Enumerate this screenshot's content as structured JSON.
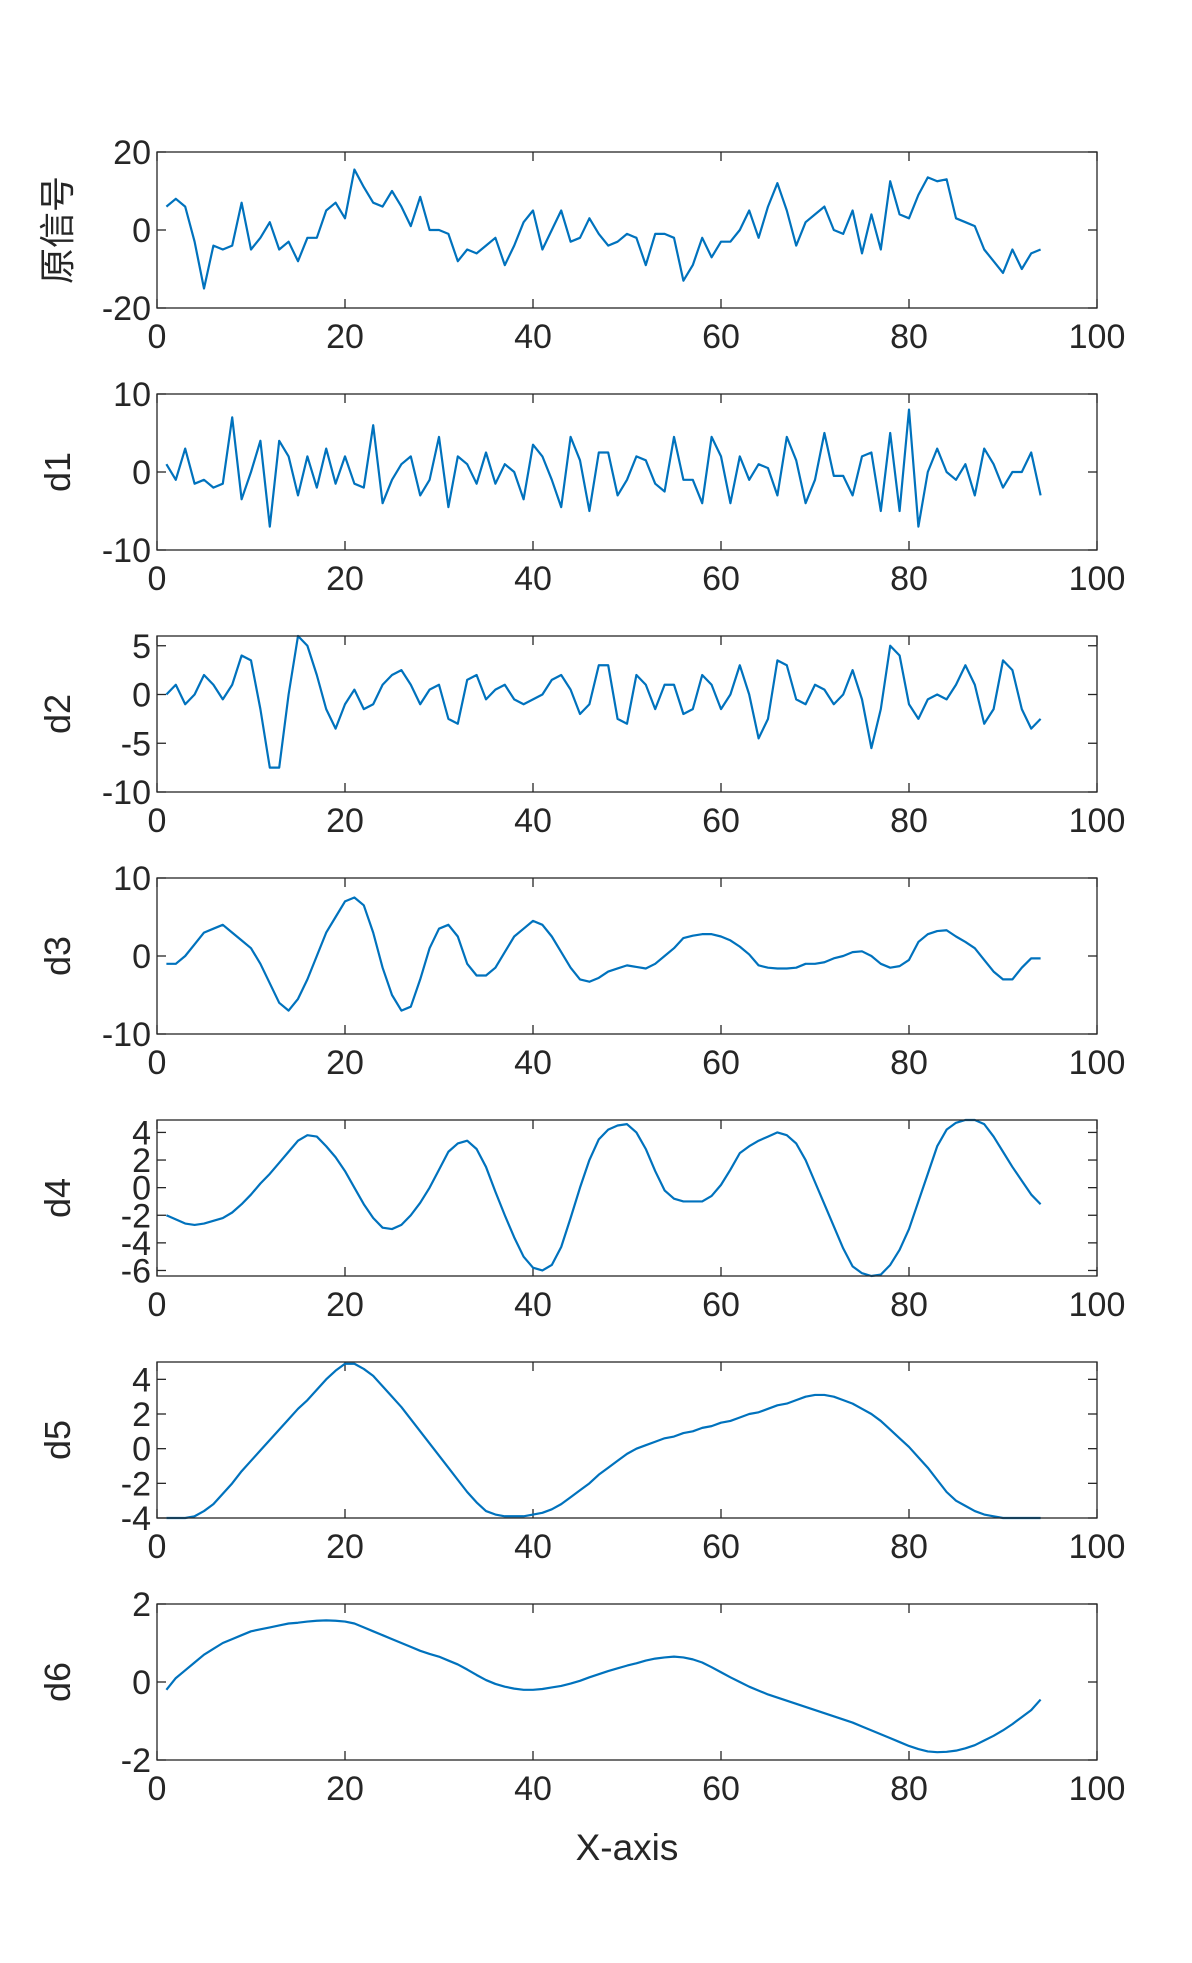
{
  "chart_data": [
    {
      "type": "line",
      "ylabel": "原信号",
      "color": "#0072bd",
      "x": [
        1,
        2,
        3,
        4,
        5,
        6,
        7,
        8,
        9,
        10,
        11,
        12,
        13,
        14,
        15,
        16,
        17,
        18,
        19,
        20,
        21,
        22,
        23,
        24,
        25,
        26,
        27,
        28,
        29,
        30,
        31,
        32,
        33,
        34,
        35,
        36,
        37,
        38,
        39,
        40,
        41,
        42,
        43,
        44,
        45,
        46,
        47,
        48,
        49,
        50,
        51,
        52,
        53,
        54,
        55,
        56,
        57,
        58,
        59,
        60,
        61,
        62,
        63,
        64,
        65,
        66,
        67,
        68,
        69,
        70,
        71,
        72,
        73,
        74,
        75,
        76,
        77,
        78,
        79,
        80,
        81,
        82,
        83,
        84,
        85,
        86,
        87,
        88,
        89,
        90,
        91,
        92,
        93,
        94
      ],
      "values": [
        6,
        8,
        6,
        -3,
        -15,
        -4,
        -5,
        -4,
        7,
        -5,
        -2,
        2,
        -5,
        -3,
        -8,
        -2,
        -2,
        5,
        7,
        3,
        15.5,
        11,
        7,
        6,
        10,
        6,
        1,
        8.5,
        0,
        0,
        -1,
        -8,
        -5,
        -6,
        -4,
        -2,
        -9,
        -4,
        2,
        5,
        -5,
        0,
        5,
        -3,
        -2,
        3,
        -1,
        -4,
        -3,
        -1,
        -2,
        -9,
        -1,
        -1,
        -2,
        -13,
        -9,
        -2,
        -7,
        -3,
        -3,
        0,
        5,
        -2,
        6,
        12,
        5,
        -4,
        2,
        4,
        6,
        0,
        -1,
        5,
        -6,
        4,
        -5,
        12.5,
        4,
        3,
        9,
        13.5,
        12.5,
        13,
        3,
        2,
        1,
        -5,
        -8,
        -11,
        -5,
        -10,
        -6,
        -5
      ],
      "xlim": [
        0,
        100
      ],
      "xticks": [
        0,
        20,
        40,
        60,
        80,
        100
      ],
      "ylim": [
        -20,
        20
      ],
      "yticks": [
        -20,
        0,
        20
      ]
    },
    {
      "type": "line",
      "ylabel": "d1",
      "color": "#0072bd",
      "x": [
        1,
        2,
        3,
        4,
        5,
        6,
        7,
        8,
        9,
        10,
        11,
        12,
        13,
        14,
        15,
        16,
        17,
        18,
        19,
        20,
        21,
        22,
        23,
        24,
        25,
        26,
        27,
        28,
        29,
        30,
        31,
        32,
        33,
        34,
        35,
        36,
        37,
        38,
        39,
        40,
        41,
        42,
        43,
        44,
        45,
        46,
        47,
        48,
        49,
        50,
        51,
        52,
        53,
        54,
        55,
        56,
        57,
        58,
        59,
        60,
        61,
        62,
        63,
        64,
        65,
        66,
        67,
        68,
        69,
        70,
        71,
        72,
        73,
        74,
        75,
        76,
        77,
        78,
        79,
        80,
        81,
        82,
        83,
        84,
        85,
        86,
        87,
        88,
        89,
        90,
        91,
        92,
        93,
        94
      ],
      "values": [
        1,
        -1,
        3,
        -1.5,
        -1,
        -2,
        -1.5,
        7,
        -3.5,
        0,
        4,
        -7,
        4,
        2,
        -3,
        2,
        -2,
        3,
        -1.5,
        2,
        -1.5,
        -2,
        6,
        -4,
        -1,
        1,
        2,
        -3,
        -1,
        4.5,
        -4.5,
        2,
        1,
        -1.5,
        2.5,
        -1.5,
        1,
        0,
        -3.5,
        3.5,
        2,
        -1,
        -4.5,
        4.5,
        1.5,
        -5,
        2.5,
        2.5,
        -3,
        -1,
        2,
        1.5,
        -1.5,
        -2.5,
        4.5,
        -1,
        -1,
        -4,
        4.5,
        2,
        -4,
        2,
        -1,
        1,
        0.5,
        -3,
        4.5,
        1.5,
        -4,
        -1,
        5,
        -0.5,
        -0.5,
        -3,
        2,
        2.5,
        -5,
        5,
        -5,
        8,
        -7,
        0,
        3,
        0,
        -1,
        1,
        -3,
        3,
        1,
        -2,
        0,
        0,
        2.5,
        -3
      ],
      "xlim": [
        0,
        100
      ],
      "xticks": [
        0,
        20,
        40,
        60,
        80,
        100
      ],
      "ylim": [
        -10,
        10
      ],
      "yticks": [
        -10,
        0,
        10
      ]
    },
    {
      "type": "line",
      "ylabel": "d2",
      "color": "#0072bd",
      "x": [
        1,
        2,
        3,
        4,
        5,
        6,
        7,
        8,
        9,
        10,
        11,
        12,
        13,
        14,
        15,
        16,
        17,
        18,
        19,
        20,
        21,
        22,
        23,
        24,
        25,
        26,
        27,
        28,
        29,
        30,
        31,
        32,
        33,
        34,
        35,
        36,
        37,
        38,
        39,
        40,
        41,
        42,
        43,
        44,
        45,
        46,
        47,
        48,
        49,
        50,
        51,
        52,
        53,
        54,
        55,
        56,
        57,
        58,
        59,
        60,
        61,
        62,
        63,
        64,
        65,
        66,
        67,
        68,
        69,
        70,
        71,
        72,
        73,
        74,
        75,
        76,
        77,
        78,
        79,
        80,
        81,
        82,
        83,
        84,
        85,
        86,
        87,
        88,
        89,
        90,
        91,
        92,
        93,
        94
      ],
      "values": [
        0,
        1,
        -1,
        0,
        2,
        1,
        -0.5,
        1,
        4,
        3.5,
        -1.5,
        -7.5,
        -7.5,
        0,
        6,
        5,
        2,
        -1.5,
        -3.5,
        -1,
        0.5,
        -1.5,
        -1,
        1,
        2,
        2.5,
        1,
        -1,
        0.5,
        1,
        -2.5,
        -3,
        1.5,
        2,
        -0.5,
        0.5,
        1,
        -0.5,
        -1,
        -0.5,
        0,
        1.5,
        2,
        0.5,
        -2,
        -1,
        3,
        3,
        -2.5,
        -3,
        2,
        1,
        -1.5,
        1,
        1,
        -2,
        -1.5,
        2,
        1,
        -1.5,
        0,
        3,
        0,
        -4.5,
        -2.5,
        3.5,
        3,
        -0.5,
        -1,
        1,
        0.5,
        -1,
        0,
        2.5,
        -0.5,
        -5.5,
        -1.5,
        5,
        4,
        -1,
        -2.5,
        -0.5,
        0,
        -0.5,
        1,
        3,
        1,
        -3,
        -1.5,
        3.5,
        2.5,
        -1.5,
        -3.5,
        -2.5
      ],
      "xlim": [
        0,
        100
      ],
      "xticks": [
        0,
        20,
        40,
        60,
        80,
        100
      ],
      "ylim": [
        -10,
        6
      ],
      "yticks": [
        -10,
        -5,
        0,
        5
      ]
    },
    {
      "type": "line",
      "ylabel": "d3",
      "color": "#0072bd",
      "x": [
        1,
        2,
        3,
        4,
        5,
        6,
        7,
        8,
        9,
        10,
        11,
        12,
        13,
        14,
        15,
        16,
        17,
        18,
        19,
        20,
        21,
        22,
        23,
        24,
        25,
        26,
        27,
        28,
        29,
        30,
        31,
        32,
        33,
        34,
        35,
        36,
        37,
        38,
        39,
        40,
        41,
        42,
        43,
        44,
        45,
        46,
        47,
        48,
        49,
        50,
        51,
        52,
        53,
        54,
        55,
        56,
        57,
        58,
        59,
        60,
        61,
        62,
        63,
        64,
        65,
        66,
        67,
        68,
        69,
        70,
        71,
        72,
        73,
        74,
        75,
        76,
        77,
        78,
        79,
        80,
        81,
        82,
        83,
        84,
        85,
        86,
        87,
        88,
        89,
        90,
        91,
        92,
        93,
        94
      ],
      "values": [
        -1,
        -1,
        0,
        1.5,
        3,
        3.5,
        4,
        3,
        2,
        1,
        -1,
        -3.5,
        -6,
        -7,
        -5.5,
        -3,
        0,
        3,
        5,
        7,
        7.5,
        6.5,
        3,
        -1.5,
        -5,
        -7,
        -6.5,
        -3,
        1,
        3.5,
        4,
        2.5,
        -1,
        -2.5,
        -2.5,
        -1.5,
        0.5,
        2.5,
        3.5,
        4.5,
        4,
        2.5,
        0.5,
        -1.5,
        -3,
        -3.3,
        -2.8,
        -2,
        -1.6,
        -1.2,
        -1.4,
        -1.6,
        -1,
        0,
        1,
        2.3,
        2.6,
        2.8,
        2.8,
        2.5,
        2,
        1.2,
        0.2,
        -1.2,
        -1.5,
        -1.6,
        -1.6,
        -1.5,
        -1,
        -1,
        -0.8,
        -0.3,
        0,
        0.5,
        0.6,
        0,
        -1,
        -1.5,
        -1.3,
        -0.5,
        1.8,
        2.8,
        3.2,
        3.3,
        2.5,
        1.8,
        1,
        -0.5,
        -2,
        -3,
        -3,
        -1.5,
        -0.3,
        -0.3
      ],
      "xlim": [
        0,
        100
      ],
      "xticks": [
        0,
        20,
        40,
        60,
        80,
        100
      ],
      "ylim": [
        -10,
        10
      ],
      "yticks": [
        -10,
        0,
        10
      ]
    },
    {
      "type": "line",
      "ylabel": "d4",
      "color": "#0072bd",
      "x": [
        1,
        2,
        3,
        4,
        5,
        6,
        7,
        8,
        9,
        10,
        11,
        12,
        13,
        14,
        15,
        16,
        17,
        18,
        19,
        20,
        21,
        22,
        23,
        24,
        25,
        26,
        27,
        28,
        29,
        30,
        31,
        32,
        33,
        34,
        35,
        36,
        37,
        38,
        39,
        40,
        41,
        42,
        43,
        44,
        45,
        46,
        47,
        48,
        49,
        50,
        51,
        52,
        53,
        54,
        55,
        56,
        57,
        58,
        59,
        60,
        61,
        62,
        63,
        64,
        65,
        66,
        67,
        68,
        69,
        70,
        71,
        72,
        73,
        74,
        75,
        76,
        77,
        78,
        79,
        80,
        81,
        82,
        83,
        84,
        85,
        86,
        87,
        88,
        89,
        90,
        91,
        92,
        93,
        94
      ],
      "values": [
        -2,
        -2.3,
        -2.6,
        -2.7,
        -2.6,
        -2.4,
        -2.2,
        -1.8,
        -1.2,
        -0.5,
        0.3,
        1,
        1.8,
        2.6,
        3.4,
        3.8,
        3.7,
        3,
        2.2,
        1.2,
        0,
        -1.2,
        -2.2,
        -2.9,
        -3,
        -2.7,
        -2,
        -1.1,
        0,
        1.3,
        2.6,
        3.2,
        3.4,
        2.8,
        1.5,
        -0.3,
        -2,
        -3.6,
        -5,
        -5.8,
        -6,
        -5.6,
        -4.3,
        -2.2,
        0,
        2,
        3.5,
        4.2,
        4.5,
        4.6,
        4,
        2.8,
        1.2,
        -0.2,
        -0.8,
        -1,
        -1,
        -1,
        -0.6,
        0.2,
        1.3,
        2.5,
        3,
        3.4,
        3.7,
        4,
        3.8,
        3.2,
        2,
        0.4,
        -1.2,
        -2.8,
        -4.4,
        -5.7,
        -6.2,
        -6.4,
        -6.3,
        -5.6,
        -4.5,
        -3,
        -1,
        1,
        3,
        4.2,
        4.7,
        4.9,
        4.9,
        4.6,
        3.7,
        2.6,
        1.5,
        0.5,
        -0.5,
        -1.2
      ],
      "xlim": [
        0,
        100
      ],
      "xticks": [
        0,
        20,
        40,
        60,
        80,
        100
      ],
      "ylim": [
        -6.4,
        4.9
      ],
      "yticks": [
        -6,
        -4,
        -2,
        0,
        2,
        4
      ]
    },
    {
      "type": "line",
      "ylabel": "d5",
      "color": "#0072bd",
      "x": [
        1,
        2,
        3,
        4,
        5,
        6,
        7,
        8,
        9,
        10,
        11,
        12,
        13,
        14,
        15,
        16,
        17,
        18,
        19,
        20,
        21,
        22,
        23,
        24,
        25,
        26,
        27,
        28,
        29,
        30,
        31,
        32,
        33,
        34,
        35,
        36,
        37,
        38,
        39,
        40,
        41,
        42,
        43,
        44,
        45,
        46,
        47,
        48,
        49,
        50,
        51,
        52,
        53,
        54,
        55,
        56,
        57,
        58,
        59,
        60,
        61,
        62,
        63,
        64,
        65,
        66,
        67,
        68,
        69,
        70,
        71,
        72,
        73,
        74,
        75,
        76,
        77,
        78,
        79,
        80,
        81,
        82,
        83,
        84,
        85,
        86,
        87,
        88,
        89,
        90,
        91,
        92,
        93,
        94
      ],
      "values": [
        -4,
        -4,
        -4,
        -3.9,
        -3.6,
        -3.2,
        -2.6,
        -2,
        -1.3,
        -0.7,
        -0.1,
        0.5,
        1.1,
        1.7,
        2.3,
        2.8,
        3.4,
        4,
        4.5,
        4.9,
        4.9,
        4.6,
        4.2,
        3.6,
        3,
        2.4,
        1.7,
        1,
        0.3,
        -0.4,
        -1.1,
        -1.8,
        -2.5,
        -3.1,
        -3.6,
        -3.8,
        -3.9,
        -3.9,
        -3.9,
        -3.8,
        -3.7,
        -3.5,
        -3.2,
        -2.8,
        -2.4,
        -2,
        -1.5,
        -1.1,
        -0.7,
        -0.3,
        0,
        0.2,
        0.4,
        0.6,
        0.7,
        0.9,
        1,
        1.2,
        1.3,
        1.5,
        1.6,
        1.8,
        2,
        2.1,
        2.3,
        2.5,
        2.6,
        2.8,
        3,
        3.1,
        3.1,
        3,
        2.8,
        2.6,
        2.3,
        2,
        1.6,
        1.1,
        0.6,
        0.1,
        -0.5,
        -1.1,
        -1.8,
        -2.5,
        -3,
        -3.3,
        -3.6,
        -3.8,
        -3.9,
        -4,
        -4,
        -4,
        -4,
        -4
      ],
      "xlim": [
        0,
        100
      ],
      "xticks": [
        0,
        20,
        40,
        60,
        80,
        100
      ],
      "ylim": [
        -4,
        5
      ],
      "yticks": [
        -4,
        -2,
        0,
        2,
        4
      ]
    },
    {
      "type": "line",
      "ylabel": "d6",
      "xlabel": "X-axis",
      "color": "#0072bd",
      "x": [
        1,
        2,
        3,
        4,
        5,
        6,
        7,
        8,
        9,
        10,
        11,
        12,
        13,
        14,
        15,
        16,
        17,
        18,
        19,
        20,
        21,
        22,
        23,
        24,
        25,
        26,
        27,
        28,
        29,
        30,
        31,
        32,
        33,
        34,
        35,
        36,
        37,
        38,
        39,
        40,
        41,
        42,
        43,
        44,
        45,
        46,
        47,
        48,
        49,
        50,
        51,
        52,
        53,
        54,
        55,
        56,
        57,
        58,
        59,
        60,
        61,
        62,
        63,
        64,
        65,
        66,
        67,
        68,
        69,
        70,
        71,
        72,
        73,
        74,
        75,
        76,
        77,
        78,
        79,
        80,
        81,
        82,
        83,
        84,
        85,
        86,
        87,
        88,
        89,
        90,
        91,
        92,
        93,
        94
      ],
      "values": [
        -0.2,
        0.1,
        0.3,
        0.5,
        0.7,
        0.85,
        1,
        1.1,
        1.2,
        1.3,
        1.35,
        1.4,
        1.45,
        1.5,
        1.52,
        1.55,
        1.57,
        1.58,
        1.57,
        1.55,
        1.5,
        1.4,
        1.3,
        1.2,
        1.1,
        1,
        0.9,
        0.8,
        0.72,
        0.65,
        0.55,
        0.45,
        0.32,
        0.18,
        0.05,
        -0.05,
        -0.12,
        -0.17,
        -0.2,
        -0.2,
        -0.18,
        -0.14,
        -0.1,
        -0.04,
        0.03,
        0.12,
        0.2,
        0.28,
        0.35,
        0.42,
        0.48,
        0.55,
        0.6,
        0.63,
        0.65,
        0.63,
        0.58,
        0.5,
        0.38,
        0.25,
        0.12,
        0,
        -0.12,
        -0.22,
        -0.32,
        -0.4,
        -0.48,
        -0.56,
        -0.64,
        -0.72,
        -0.8,
        -0.88,
        -0.96,
        -1.04,
        -1.14,
        -1.24,
        -1.34,
        -1.44,
        -1.54,
        -1.64,
        -1.72,
        -1.78,
        -1.8,
        -1.79,
        -1.76,
        -1.7,
        -1.62,
        -1.5,
        -1.38,
        -1.24,
        -1.08,
        -0.9,
        -0.72,
        -0.45
      ],
      "xlim": [
        0,
        100
      ],
      "xticks": [
        0,
        20,
        40,
        60,
        80,
        100
      ],
      "ylim": [
        -2,
        2
      ],
      "yticks": [
        -2,
        0,
        2
      ]
    }
  ]
}
